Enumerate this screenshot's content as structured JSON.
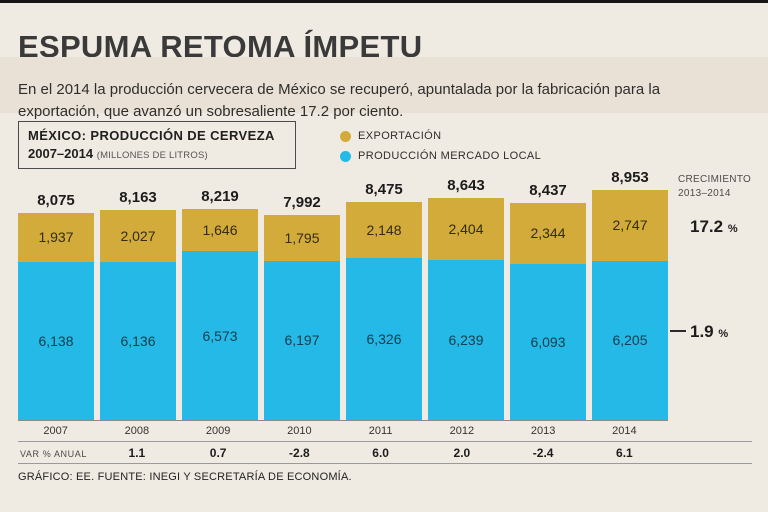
{
  "page": {
    "title": "ESPUMA RETOMA ÍMPETU",
    "subtitle": "En el 2014 la producción cervecera de México se recuperó, apuntalada por la fabricación para la exportación, que avanzó un sobresaliente 17.2 por ciento.",
    "footer": "GRÁFICO: EE. FUENTE: INEGI Y SECRETARÍA DE ECONOMÍA.",
    "colors": {
      "background": "#f0ebe2",
      "subtitle_band": "#e9e1d5",
      "export_gold": "#d3ab3a",
      "local_cyan": "#25b9e8"
    }
  },
  "chart_data": {
    "type": "bar",
    "stacked": true,
    "title_line1": "MÉXICO: PRODUCCIÓN DE CERVEZA",
    "title_line2": "2007–2014",
    "units_label": "(MILLONES DE LITROS)",
    "categories": [
      "2007",
      "2008",
      "2009",
      "2010",
      "2011",
      "2012",
      "2013",
      "2014"
    ],
    "ymax": 8953,
    "ylim": [
      0,
      8953
    ],
    "legend_position": "top-right",
    "series": [
      {
        "name": "EXPORTACIÓN",
        "color": "#d3ab3a",
        "values": [
          1937,
          2027,
          1646,
          1795,
          2148,
          2404,
          2344,
          2747
        ],
        "labels": [
          "1,937",
          "2,027",
          "1,646",
          "1,795",
          "2,148",
          "2,404",
          "2,344",
          "2,747"
        ]
      },
      {
        "name": "PRODUCCIÓN MERCADO LOCAL",
        "color": "#25b9e8",
        "values": [
          6138,
          6136,
          6573,
          6197,
          6326,
          6239,
          6093,
          6205
        ],
        "labels": [
          "6,138",
          "6,136",
          "6,573",
          "6,197",
          "6,326",
          "6,239",
          "6,093",
          "6,205"
        ]
      }
    ],
    "totals": {
      "values": [
        8075,
        8163,
        8219,
        7992,
        8475,
        8643,
        8437,
        8953
      ],
      "labels": [
        "8,075",
        "8,163",
        "8,219",
        "7,992",
        "8,475",
        "8,643",
        "8,437",
        "8,953"
      ]
    },
    "growth": {
      "title_line1": "CRECIMIENTO",
      "title_line2": "2013–2014",
      "export_value": "17.2",
      "local_value": "1.9",
      "pct_sign": "%"
    },
    "var_pct_anual": {
      "label": "VAR %  ANUAL",
      "values": [
        "",
        "1.1",
        "0.7",
        "-2.8",
        "6.0",
        "2.0",
        "-2.4",
        "6.1"
      ]
    }
  }
}
